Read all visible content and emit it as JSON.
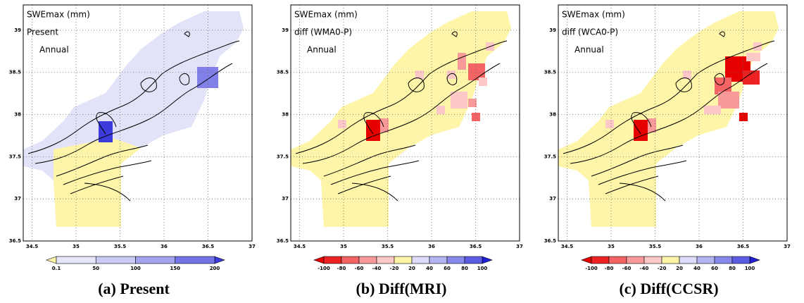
{
  "panels": [
    {
      "title": "SWEmax (mm)",
      "subtitle": "Present",
      "season": "Annual",
      "caption": "(a) Present",
      "colorbar": {
        "labels": [
          0.1,
          50,
          100,
          150,
          200
        ],
        "colors": [
          "#fff5a8",
          "#e6e6fa",
          "#cacaf4",
          "#a4a4ee",
          "#7474e6",
          "#3c3cdc"
        ]
      }
    },
    {
      "title": "SWEmax (mm)",
      "subtitle": "diff (WMA0-P)",
      "season": "Annual",
      "caption": "(b) Diff(MRI)",
      "colorbar": {
        "labels": [
          -100,
          -80,
          -60,
          -40,
          -20,
          20,
          40,
          60,
          80,
          100
        ],
        "colors": [
          "#e60000",
          "#ee2222",
          "#f46464",
          "#f89a9a",
          "#fcc8c8",
          "#fff5a8",
          "#dcdcfa",
          "#b4b4f2",
          "#8888ea",
          "#5c5ce2",
          "#1e1ed6"
        ]
      }
    },
    {
      "title": "SWEmax (mm)",
      "subtitle": "diff (WCA0-P)",
      "season": "Annual",
      "caption": "(c) Diff(CCSR)",
      "colorbar": {
        "labels": [
          -100,
          -80,
          -60,
          -40,
          -20,
          20,
          40,
          60,
          80,
          100
        ],
        "colors": [
          "#e60000",
          "#ee2222",
          "#f46464",
          "#f89a9a",
          "#fcc8c8",
          "#fff5a8",
          "#dcdcfa",
          "#b4b4f2",
          "#8888ea",
          "#5c5ce2",
          "#1e1ed6"
        ]
      }
    }
  ],
  "xlim": [
    34.4,
    37
  ],
  "ylim": [
    36.5,
    39.3
  ],
  "xticks": [
    34.5,
    35,
    35.5,
    36,
    36.5,
    37
  ],
  "yticks": [
    36.5,
    37,
    37.5,
    38,
    38.5,
    39
  ]
}
